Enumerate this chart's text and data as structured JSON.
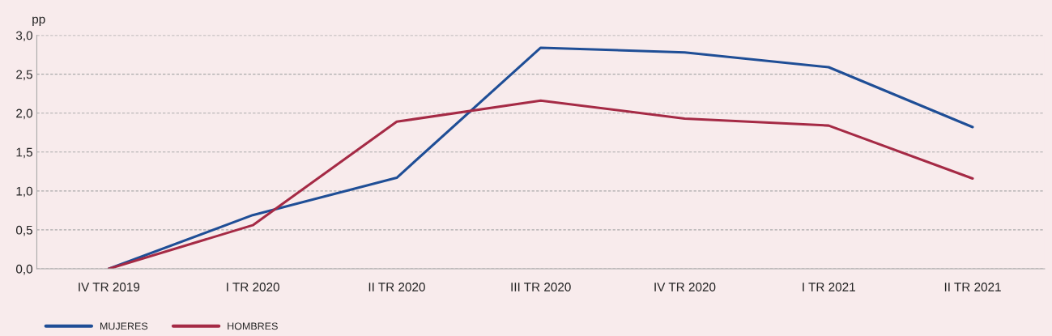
{
  "chart_data": {
    "type": "line",
    "ylabel": "pp",
    "categories": [
      "IV TR 2019",
      "I TR 2020",
      "II TR 2020",
      "III TR 2020",
      "IV TR 2020",
      "I TR 2021",
      "II TR 2021"
    ],
    "series": [
      {
        "name": "MUJERES",
        "color": "#1f4e96",
        "values": [
          0.0,
          0.69,
          1.17,
          2.84,
          2.78,
          2.59,
          1.82
        ]
      },
      {
        "name": "HOMBRES",
        "color": "#a52a45",
        "values": [
          0.0,
          0.56,
          1.89,
          2.16,
          1.93,
          1.84,
          1.16
        ]
      }
    ],
    "ylim": [
      0,
      3
    ],
    "yticks": [
      {
        "value": 0,
        "label": "0,0"
      },
      {
        "value": 0.5,
        "label": "0,5"
      },
      {
        "value": 1,
        "label": "1,0"
      },
      {
        "value": 1.5,
        "label": "1,5"
      },
      {
        "value": 2,
        "label": "2,0"
      },
      {
        "value": 2.5,
        "label": "2,5"
      },
      {
        "value": 3,
        "label": "3,0"
      }
    ],
    "grid": "y",
    "legend": "bottom left",
    "marker": "none",
    "line_style": "solid"
  }
}
